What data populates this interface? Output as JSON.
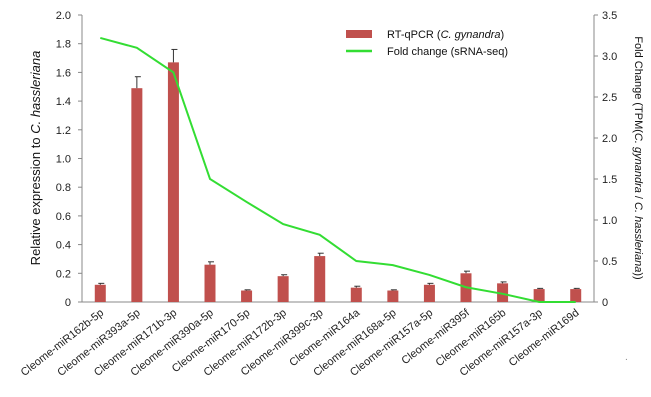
{
  "chart_data": {
    "type": "bar",
    "categories": [
      "Cleome-miR162b-5p",
      "Cleome-miR393a-5p",
      "Cleome-miR171b-3p",
      "Cleome-miR390a-5p",
      "Cleome-miR170-5p",
      "Cleome-miR172b-3p",
      "Cleome-miR399c-3p",
      "Cleome-miR164a",
      "Cleome-miR168a-5p",
      "Cleome-miR157a-5p",
      "Cleome-miR395f",
      "Cleome-miR165b",
      "Cleome-miR157a-3p",
      "Cleome-miR169d"
    ],
    "series": [
      {
        "name_parts": [
          "RT-qPCR (",
          "C. gynandra",
          ")"
        ],
        "type": "bar",
        "axis": "left",
        "color": "#c0504d",
        "values": [
          0.12,
          1.49,
          1.67,
          0.26,
          0.08,
          0.18,
          0.32,
          0.1,
          0.08,
          0.12,
          0.2,
          0.13,
          0.09,
          0.09
        ],
        "errors": [
          0.01,
          0.08,
          0.09,
          0.02,
          0.005,
          0.01,
          0.02,
          0.01,
          0.005,
          0.01,
          0.015,
          0.01,
          0.005,
          0.005
        ]
      },
      {
        "name": "Fold change (sRNA-seq)",
        "type": "line",
        "axis": "right",
        "color": "#33dd33",
        "values": [
          3.22,
          3.1,
          2.8,
          1.5,
          1.22,
          0.95,
          0.82,
          0.5,
          0.45,
          0.33,
          0.18,
          0.1,
          0.0,
          0.0
        ]
      }
    ],
    "ylabel_parts": [
      "Relative expression to ",
      "C. hassleriana"
    ],
    "y2label_parts": [
      "Fold Change (TPM(",
      "C. gynandra",
      " / ",
      "C. hassleriana",
      "))"
    ],
    "ylim": [
      0,
      2.0
    ],
    "y2lim": [
      0,
      3.5
    ],
    "yticks": [
      "0",
      "0.2",
      "0.4",
      "0.6",
      "0.8",
      "1.0",
      "1.2",
      "1.4",
      "1.6",
      "1.8",
      "2.0"
    ],
    "y2ticks": [
      "0",
      "0.5",
      "1.0",
      "1.5",
      "2.0",
      "2.5",
      "3.0",
      "3.5"
    ],
    "grid": false,
    "legend_position": "top-right",
    "footnote_mark": "."
  }
}
